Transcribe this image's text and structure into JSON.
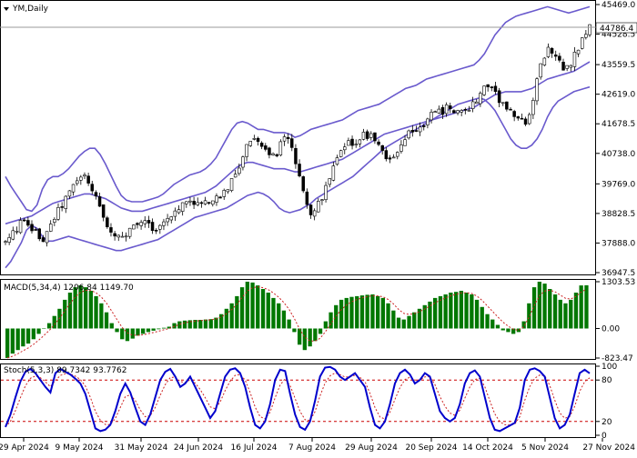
{
  "symbol_label": "YM,Daily",
  "price_tag": "44786.4",
  "macd_label": "MACD(5,34,4) 1206.84 1149.70",
  "stoch_label": "Stoch(5,3,3) 89.7342 93.7762",
  "colors": {
    "band": "#6a5acd",
    "candle": "#000000",
    "macd_bar": "#007700",
    "macd_signal": "#cc2222",
    "stoch_main": "#0000cc",
    "stoch_signal": "#cc2222",
    "level_line": "#cc0000",
    "grid": "#888888"
  },
  "chart_data": [
    {
      "type": "candlestick",
      "name": "price",
      "y_ticks": [
        "45469.0",
        "44528.5",
        "43559.5",
        "42619.0",
        "41678.5",
        "40738.0",
        "39769.0",
        "38828.5",
        "37888.0",
        "36947.5"
      ],
      "ylim": [
        36947.5,
        45469.0
      ],
      "x_ticks": [
        "29 Apr 2024",
        "9 May 2024",
        "31 May 2024",
        "24 Jun 2024",
        "16 Jul 2024",
        "7 Aug 2024",
        "29 Aug 2024",
        "20 Sep 2024",
        "14 Oct 2024",
        "5 Nov 2024",
        "27 Nov 2024"
      ],
      "close_path": [
        37900,
        38100,
        38300,
        38600,
        38450,
        38300,
        38150,
        38000,
        38200,
        38600,
        38900,
        39200,
        39450,
        39700,
        39950,
        40000,
        39800,
        39400,
        39000,
        38600,
        38300,
        38100,
        38000,
        38150,
        38300,
        38450,
        38600,
        38500,
        38400,
        38350,
        38500,
        38700,
        38900,
        39050,
        39150,
        39250,
        39200,
        39100,
        39150,
        39200,
        39300,
        39400,
        39600,
        39850,
        40200,
        40600,
        41000,
        41300,
        41200,
        41000,
        40800,
        40600,
        40900,
        41200,
        41100,
        40500,
        39800,
        39200,
        38900,
        39000,
        39300,
        39700,
        40100,
        40500,
        40800,
        41000,
        41100,
        41200,
        41300,
        41350,
        41300,
        41000,
        40700,
        40500,
        40600,
        40900,
        41200,
        41400,
        41500,
        41600,
        41800,
        41950,
        42000,
        42100,
        42200,
        42150,
        42050,
        42000,
        42100,
        42350,
        42600,
        42800,
        42900,
        42700,
        42400,
        42200,
        42000,
        41850,
        41700,
        41800,
        42200,
        43100,
        43700,
        44100,
        44000,
        43700,
        43400,
        43500,
        43800,
        44200,
        44500,
        44786.4
      ],
      "upper_band": [
        40000,
        39700,
        39450,
        39200,
        38950,
        38900,
        39100,
        39600,
        39900,
        40000,
        40000,
        40100,
        40250,
        40450,
        40650,
        40800,
        40900,
        40900,
        40700,
        40400,
        40050,
        39700,
        39400,
        39250,
        39200,
        39200,
        39200,
        39250,
        39300,
        39350,
        39450,
        39600,
        39750,
        39850,
        39950,
        40050,
        40100,
        40150,
        40250,
        40400,
        40600,
        40900,
        41200,
        41500,
        41700,
        41750,
        41700,
        41600,
        41500,
        41500,
        41450,
        41400,
        41400,
        41400,
        41350,
        41250,
        41300,
        41400,
        41500,
        41550,
        41600,
        41650,
        41700,
        41750,
        41800,
        41900,
        42000,
        42100,
        42150,
        42200,
        42250,
        42300,
        42400,
        42500,
        42600,
        42700,
        42800,
        42850,
        42900,
        43000,
        43100,
        43150,
        43200,
        43250,
        43300,
        43350,
        43400,
        43450,
        43500,
        43550,
        43700,
        43900,
        44200,
        44500,
        44700,
        44900,
        45000,
        45100,
        45150,
        45200,
        45250,
        45300,
        45350,
        45400,
        45350,
        45300,
        45250,
        45200,
        45250,
        45300,
        45350,
        45400
      ],
      "middle_band": [
        38500,
        38550,
        38600,
        38650,
        38700,
        38750,
        38850,
        38950,
        39050,
        39150,
        39200,
        39250,
        39300,
        39350,
        39400,
        39450,
        39450,
        39400,
        39350,
        39300,
        39200,
        39100,
        39000,
        38950,
        38900,
        38900,
        38900,
        38950,
        39000,
        39050,
        39100,
        39150,
        39200,
        39250,
        39300,
        39350,
        39400,
        39450,
        39500,
        39600,
        39700,
        39850,
        40000,
        40150,
        40300,
        40400,
        40450,
        40450,
        40400,
        40350,
        40300,
        40250,
        40250,
        40250,
        40200,
        40150,
        40150,
        40200,
        40250,
        40300,
        40350,
        40400,
        40450,
        40500,
        40550,
        40650,
        40750,
        40850,
        40950,
        41050,
        41150,
        41250,
        41350,
        41400,
        41450,
        41500,
        41550,
        41600,
        41650,
        41700,
        41750,
        41800,
        41850,
        41900,
        41950,
        42000,
        42050,
        42100,
        42150,
        42200,
        42300,
        42400,
        42500,
        42600,
        42650,
        42700,
        42700,
        42700,
        42700,
        42750,
        42800,
        42900,
        43000,
        43100,
        43150,
        43200,
        43250,
        43300,
        43350,
        43450,
        43550,
        43650
      ],
      "lower_band": [
        37100,
        37300,
        37600,
        37900,
        38300,
        38450,
        38350,
        38100,
        37950,
        37950,
        38000,
        38050,
        38100,
        38050,
        38000,
        37950,
        37900,
        37850,
        37800,
        37750,
        37700,
        37650,
        37650,
        37700,
        37750,
        37800,
        37850,
        37900,
        37950,
        38000,
        38100,
        38200,
        38300,
        38400,
        38500,
        38600,
        38700,
        38750,
        38800,
        38850,
        38900,
        38950,
        39000,
        39100,
        39200,
        39300,
        39400,
        39450,
        39500,
        39450,
        39350,
        39200,
        39000,
        38900,
        38850,
        38900,
        38950,
        39050,
        39150,
        39300,
        39400,
        39500,
        39600,
        39700,
        39800,
        39900,
        40000,
        40150,
        40300,
        40450,
        40600,
        40750,
        40900,
        41000,
        41100,
        41200,
        41300,
        41400,
        41500,
        41600,
        41700,
        41800,
        41900,
        42000,
        42100,
        42200,
        42300,
        42350,
        42400,
        42450,
        42500,
        42450,
        42300,
        42100,
        41800,
        41500,
        41200,
        41000,
        40900,
        40900,
        41000,
        41200,
        41500,
        41900,
        42200,
        42400,
        42500,
        42600,
        42700,
        42750,
        42800,
        42850
      ]
    },
    {
      "type": "bar",
      "name": "macd",
      "y_ticks": [
        "1303.53",
        "0.00",
        "-823.47"
      ],
      "ylim": [
        -823.47,
        1303.53
      ],
      "values": [
        -820,
        -700,
        -600,
        -500,
        -420,
        -300,
        -150,
        0,
        150,
        350,
        550,
        800,
        1000,
        1150,
        1200,
        1150,
        1050,
        900,
        700,
        450,
        150,
        -100,
        -300,
        -350,
        -280,
        -200,
        -150,
        -100,
        -60,
        -20,
        20,
        50,
        150,
        200,
        220,
        230,
        240,
        240,
        250,
        260,
        300,
        400,
        550,
        700,
        900,
        1150,
        1303,
        1280,
        1200,
        1100,
        1000,
        850,
        700,
        500,
        250,
        -100,
        -450,
        -600,
        -500,
        -350,
        -150,
        200,
        450,
        650,
        800,
        850,
        880,
        900,
        920,
        940,
        950,
        900,
        850,
        700,
        500,
        300,
        250,
        350,
        450,
        550,
        650,
        750,
        850,
        900,
        950,
        1000,
        1020,
        1050,
        1000,
        950,
        800,
        600,
        400,
        250,
        100,
        -50,
        -100,
        -150,
        -100,
        200,
        700,
        1150,
        1303,
        1250,
        1100,
        950,
        800,
        700,
        800,
        1000,
        1200,
        1206
      ]
    },
    {
      "type": "line",
      "name": "stochastic",
      "y_ticks": [
        "100",
        "80",
        "20",
        "0"
      ],
      "ylim": [
        0,
        100
      ],
      "levels": [
        80,
        20
      ],
      "values": [
        12,
        30,
        55,
        78,
        92,
        96,
        90,
        80,
        70,
        62,
        90,
        96,
        92,
        88,
        82,
        75,
        60,
        35,
        10,
        6,
        8,
        15,
        35,
        60,
        75,
        62,
        40,
        20,
        15,
        30,
        55,
        80,
        92,
        96,
        85,
        70,
        75,
        85,
        70,
        55,
        40,
        25,
        35,
        60,
        85,
        95,
        97,
        90,
        70,
        40,
        15,
        10,
        20,
        45,
        80,
        95,
        93,
        60,
        30,
        12,
        8,
        20,
        50,
        85,
        98,
        99,
        95,
        85,
        80,
        85,
        90,
        80,
        70,
        40,
        15,
        10,
        20,
        45,
        75,
        90,
        95,
        88,
        75,
        80,
        90,
        85,
        60,
        35,
        25,
        20,
        25,
        45,
        75,
        90,
        94,
        85,
        55,
        25,
        8,
        6,
        10,
        14,
        18,
        40,
        80,
        95,
        97,
        93,
        85,
        55,
        25,
        10,
        15,
        30,
        60,
        90,
        95,
        89.7
      ]
    }
  ]
}
